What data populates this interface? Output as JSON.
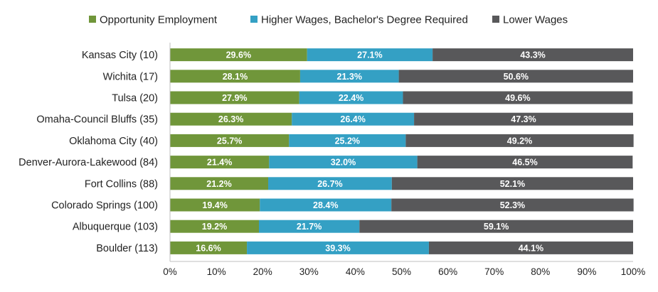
{
  "chart_data": {
    "type": "bar",
    "orientation": "horizontal",
    "stacked": true,
    "categories": [
      "Kansas City (10)",
      "Wichita (17)",
      "Tulsa (20)",
      "Omaha-Council Bluffs (35)",
      "Oklahoma City (40)",
      "Denver-Aurora-Lakewood (84)",
      "Fort Collins (88)",
      "Colorado Springs (100)",
      "Albuquerque (103)",
      "Boulder (113)"
    ],
    "series": [
      {
        "name": "Opportunity Employment",
        "color": "#70963a",
        "values": [
          29.6,
          28.1,
          27.9,
          26.3,
          25.7,
          21.4,
          21.2,
          19.4,
          19.2,
          16.6
        ],
        "labels": [
          "29.6%",
          "28.1%",
          "27.9%",
          "26.3%",
          "25.7%",
          "21.4%",
          "21.2%",
          "19.4%",
          "19.2%",
          "16.6%"
        ]
      },
      {
        "name": "Higher Wages, Bachelor's Degree Required",
        "color": "#34a0c4",
        "values": [
          27.1,
          21.3,
          22.4,
          26.4,
          25.2,
          32.0,
          26.7,
          28.4,
          21.7,
          39.3
        ],
        "labels": [
          "27.1%",
          "21.3%",
          "22.4%",
          "26.4%",
          "25.2%",
          "32.0%",
          "26.7%",
          "28.4%",
          "21.7%",
          "39.3%"
        ]
      },
      {
        "name": "Lower Wages",
        "color": "#58585a",
        "values": [
          43.3,
          50.6,
          49.6,
          47.3,
          49.2,
          46.5,
          52.1,
          52.3,
          59.1,
          44.1
        ],
        "labels": [
          "43.3%",
          "50.6%",
          "49.6%",
          "47.3%",
          "49.2%",
          "46.5%",
          "52.1%",
          "52.3%",
          "59.1%",
          "44.1%"
        ]
      }
    ],
    "x_ticks": [
      "0%",
      "10%",
      "20%",
      "30%",
      "40%",
      "50%",
      "60%",
      "70%",
      "80%",
      "90%",
      "100%"
    ],
    "xlim": [
      0,
      100
    ],
    "title": "",
    "xlabel": "",
    "ylabel": "",
    "grid": false,
    "legend_position": "top"
  }
}
